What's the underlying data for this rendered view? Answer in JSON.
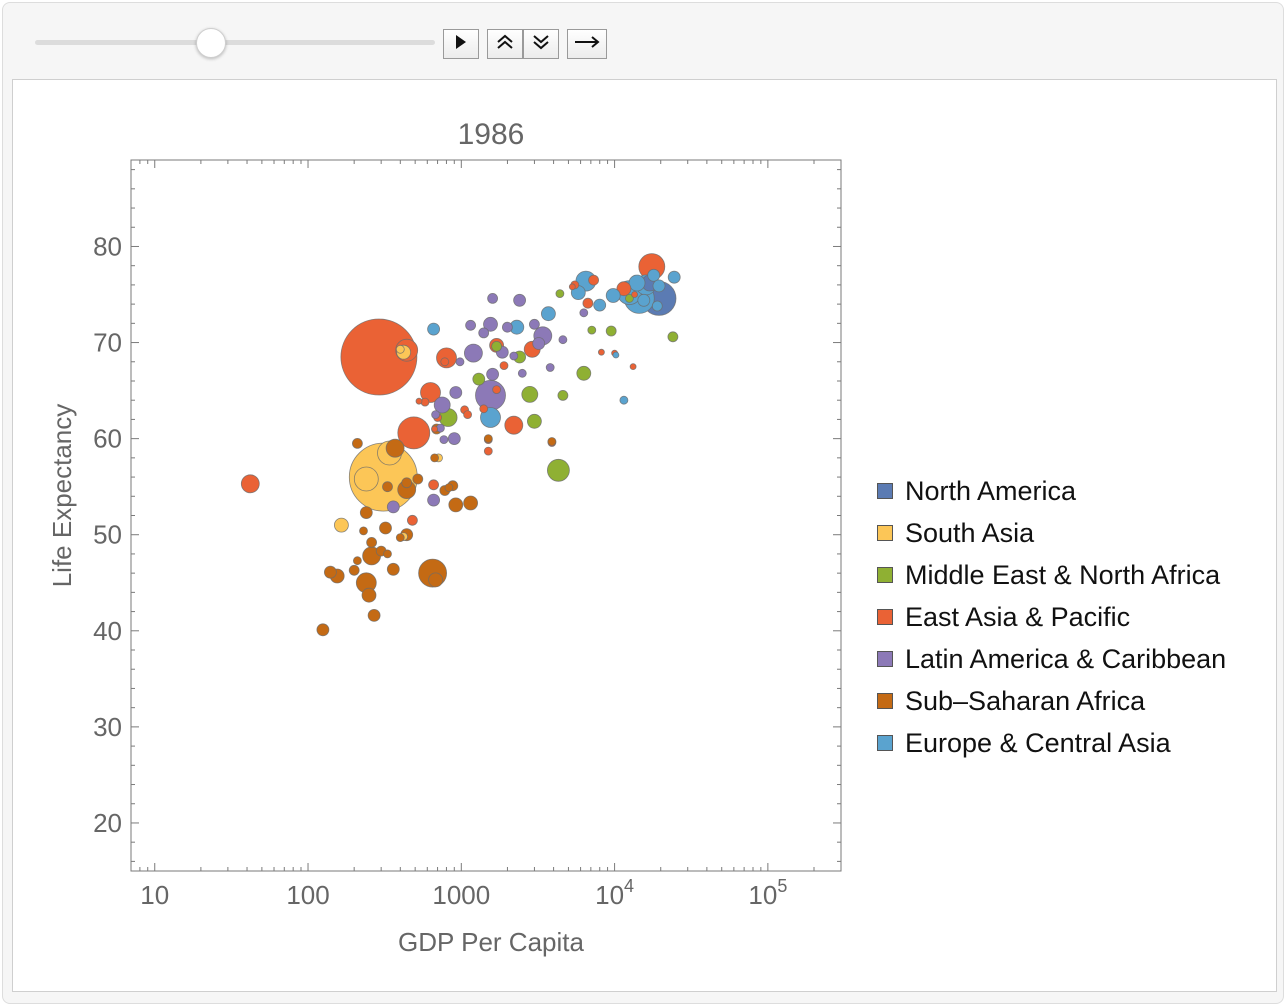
{
  "controls": {
    "slider_value": 0.44,
    "play_icon": "play-icon",
    "faster_icon": "double-chevron-up-icon",
    "slower_icon": "double-chevron-down-icon",
    "direction_icon": "right-arrow-icon"
  },
  "colors": {
    "North America": "#5b7bb3",
    "South Asia": "#fcc657",
    "Middle East & North Africa": "#8fb033",
    "East Asia & Pacific": "#ea6235",
    "Latin America & Caribbean": "#8c79b7",
    "Sub-Saharan Africa": "#c46a14",
    "Europe & Central Asia": "#5aa3cf"
  },
  "chart_data": {
    "type": "scatter",
    "title": "1986",
    "xlabel": "GDP Per Capita",
    "ylabel": "Life Expectancy",
    "x_scale": "log",
    "xlim": [
      7,
      300000
    ],
    "ylim": [
      15,
      89
    ],
    "x_ticks": [
      {
        "value": 10,
        "label": "10"
      },
      {
        "value": 100,
        "label": "100"
      },
      {
        "value": 1000,
        "label": "1000"
      },
      {
        "value": 10000,
        "base": "10",
        "exp": "4"
      },
      {
        "value": 100000,
        "base": "10",
        "exp": "5"
      }
    ],
    "y_ticks": [
      20,
      30,
      40,
      50,
      60,
      70,
      80
    ],
    "legend": {
      "position": "right",
      "entries": [
        "North America",
        "South Asia",
        "Middle East & North Africa",
        "East Asia & Pacific",
        "Latin America & Caribbean",
        "Sub–Saharan Africa",
        "Europe & Central Asia"
      ]
    },
    "series": [
      {
        "name": "North America",
        "points": [
          {
            "x": 19500,
            "y": 74.6,
            "size": 17
          },
          {
            "x": 17000,
            "y": 76.2,
            "size": 8
          }
        ]
      },
      {
        "name": "South Asia",
        "points": [
          {
            "x": 310,
            "y": 56.0,
            "size": 34
          },
          {
            "x": 340,
            "y": 58.5,
            "size": 12
          },
          {
            "x": 240,
            "y": 55.8,
            "size": 12
          },
          {
            "x": 420,
            "y": 69.0,
            "size": 7
          },
          {
            "x": 165,
            "y": 51.0,
            "size": 7
          },
          {
            "x": 710,
            "y": 58.0,
            "size": 4
          },
          {
            "x": 420,
            "y": 49.8,
            "size": 4
          },
          {
            "x": 400,
            "y": 69.3,
            "size": 4
          }
        ]
      },
      {
        "name": "Middle East & North Africa",
        "points": [
          {
            "x": 820,
            "y": 62.2,
            "size": 9
          },
          {
            "x": 1300,
            "y": 66.2,
            "size": 6
          },
          {
            "x": 2800,
            "y": 64.6,
            "size": 8
          },
          {
            "x": 4300,
            "y": 56.7,
            "size": 11
          },
          {
            "x": 3000,
            "y": 61.8,
            "size": 7
          },
          {
            "x": 2400,
            "y": 68.5,
            "size": 6
          },
          {
            "x": 6300,
            "y": 66.8,
            "size": 7
          },
          {
            "x": 4600,
            "y": 64.5,
            "size": 5
          },
          {
            "x": 7100,
            "y": 71.3,
            "size": 4
          },
          {
            "x": 9500,
            "y": 71.2,
            "size": 5
          },
          {
            "x": 4400,
            "y": 75.1,
            "size": 4
          },
          {
            "x": 12500,
            "y": 74.6,
            "size": 4
          },
          {
            "x": 24000,
            "y": 70.6,
            "size": 5
          },
          {
            "x": 1700,
            "y": 69.6,
            "size": 5
          }
        ]
      },
      {
        "name": "East Asia & Pacific",
        "points": [
          {
            "x": 290,
            "y": 68.5,
            "size": 38
          },
          {
            "x": 490,
            "y": 60.6,
            "size": 16
          },
          {
            "x": 440,
            "y": 69.2,
            "size": 11
          },
          {
            "x": 800,
            "y": 68.4,
            "size": 10
          },
          {
            "x": 42,
            "y": 55.3,
            "size": 9
          },
          {
            "x": 630,
            "y": 64.8,
            "size": 10
          },
          {
            "x": 17500,
            "y": 77.9,
            "size": 13
          },
          {
            "x": 2200,
            "y": 61.4,
            "size": 9
          },
          {
            "x": 2900,
            "y": 69.3,
            "size": 8
          },
          {
            "x": 1700,
            "y": 69.7,
            "size": 7
          },
          {
            "x": 11500,
            "y": 75.6,
            "size": 7
          },
          {
            "x": 7300,
            "y": 76.5,
            "size": 5
          },
          {
            "x": 6700,
            "y": 74.1,
            "size": 5
          },
          {
            "x": 660,
            "y": 55.2,
            "size": 5
          },
          {
            "x": 480,
            "y": 51.5,
            "size": 5
          },
          {
            "x": 580,
            "y": 63.8,
            "size": 4
          },
          {
            "x": 700,
            "y": 62.2,
            "size": 4
          },
          {
            "x": 780,
            "y": 68.0,
            "size": 4
          },
          {
            "x": 1400,
            "y": 63.1,
            "size": 4
          },
          {
            "x": 1500,
            "y": 58.7,
            "size": 4
          },
          {
            "x": 1500,
            "y": 59.9,
            "size": 4
          },
          {
            "x": 1700,
            "y": 65.1,
            "size": 4
          },
          {
            "x": 1900,
            "y": 67.6,
            "size": 4
          },
          {
            "x": 1050,
            "y": 63.0,
            "size": 4
          },
          {
            "x": 1100,
            "y": 62.5,
            "size": 4
          },
          {
            "x": 3900,
            "y": 59.6,
            "size": 4
          },
          {
            "x": 5500,
            "y": 76.0,
            "size": 4
          },
          {
            "x": 8200,
            "y": 69.0,
            "size": 3
          },
          {
            "x": 10000,
            "y": 68.9,
            "size": 3
          },
          {
            "x": 13200,
            "y": 67.5,
            "size": 3
          },
          {
            "x": 13500,
            "y": 75.0,
            "size": 3
          },
          {
            "x": 5300,
            "y": 75.8,
            "size": 3
          },
          {
            "x": 530,
            "y": 63.9,
            "size": 3
          },
          {
            "x": 670,
            "y": 61.0,
            "size": 3
          }
        ]
      },
      {
        "name": "Latin America & Caribbean",
        "points": [
          {
            "x": 1550,
            "y": 64.5,
            "size": 15
          },
          {
            "x": 1200,
            "y": 68.9,
            "size": 9
          },
          {
            "x": 3400,
            "y": 70.7,
            "size": 9
          },
          {
            "x": 750,
            "y": 63.5,
            "size": 8
          },
          {
            "x": 1550,
            "y": 71.9,
            "size": 7
          },
          {
            "x": 2400,
            "y": 74.4,
            "size": 6
          },
          {
            "x": 1850,
            "y": 69.0,
            "size": 6
          },
          {
            "x": 1600,
            "y": 66.7,
            "size": 6
          },
          {
            "x": 900,
            "y": 60.0,
            "size": 6
          },
          {
            "x": 920,
            "y": 64.8,
            "size": 6
          },
          {
            "x": 660,
            "y": 53.6,
            "size": 6
          },
          {
            "x": 360,
            "y": 52.9,
            "size": 6
          },
          {
            "x": 3200,
            "y": 69.9,
            "size": 6
          },
          {
            "x": 1150,
            "y": 71.8,
            "size": 5
          },
          {
            "x": 1600,
            "y": 74.6,
            "size": 5
          },
          {
            "x": 2000,
            "y": 71.6,
            "size": 5
          },
          {
            "x": 1400,
            "y": 71.0,
            "size": 5
          },
          {
            "x": 3000,
            "y": 71.9,
            "size": 5
          },
          {
            "x": 3800,
            "y": 67.4,
            "size": 4
          },
          {
            "x": 2500,
            "y": 66.8,
            "size": 4
          },
          {
            "x": 4600,
            "y": 70.3,
            "size": 4
          },
          {
            "x": 6300,
            "y": 73.1,
            "size": 4
          },
          {
            "x": 680,
            "y": 62.5,
            "size": 4
          },
          {
            "x": 730,
            "y": 61.1,
            "size": 4
          },
          {
            "x": 770,
            "y": 59.9,
            "size": 4
          },
          {
            "x": 980,
            "y": 68.0,
            "size": 4
          },
          {
            "x": 2200,
            "y": 68.6,
            "size": 4
          }
        ]
      },
      {
        "name": "Sub-Saharan Africa",
        "points": [
          {
            "x": 650,
            "y": 46.0,
            "size": 14
          },
          {
            "x": 240,
            "y": 45.0,
            "size": 10
          },
          {
            "x": 440,
            "y": 54.7,
            "size": 9
          },
          {
            "x": 370,
            "y": 59.0,
            "size": 9
          },
          {
            "x": 260,
            "y": 47.8,
            "size": 9
          },
          {
            "x": 1150,
            "y": 53.3,
            "size": 7
          },
          {
            "x": 920,
            "y": 53.1,
            "size": 7
          },
          {
            "x": 680,
            "y": 45.3,
            "size": 7
          },
          {
            "x": 250,
            "y": 43.7,
            "size": 7
          },
          {
            "x": 155,
            "y": 45.7,
            "size": 7
          },
          {
            "x": 270,
            "y": 41.6,
            "size": 6
          },
          {
            "x": 125,
            "y": 40.1,
            "size": 6
          },
          {
            "x": 140,
            "y": 46.1,
            "size": 6
          },
          {
            "x": 240,
            "y": 52.3,
            "size": 6
          },
          {
            "x": 320,
            "y": 50.7,
            "size": 6
          },
          {
            "x": 360,
            "y": 46.4,
            "size": 6
          },
          {
            "x": 440,
            "y": 50.0,
            "size": 6
          },
          {
            "x": 520,
            "y": 55.8,
            "size": 5
          },
          {
            "x": 210,
            "y": 59.5,
            "size": 5
          },
          {
            "x": 200,
            "y": 46.3,
            "size": 5
          },
          {
            "x": 260,
            "y": 49.2,
            "size": 5
          },
          {
            "x": 300,
            "y": 48.3,
            "size": 5
          },
          {
            "x": 330,
            "y": 55.0,
            "size": 5
          },
          {
            "x": 440,
            "y": 55.4,
            "size": 5
          },
          {
            "x": 880,
            "y": 55.1,
            "size": 5
          },
          {
            "x": 780,
            "y": 54.6,
            "size": 5
          },
          {
            "x": 690,
            "y": 61.0,
            "size": 5
          },
          {
            "x": 830,
            "y": 54.9,
            "size": 4
          },
          {
            "x": 230,
            "y": 50.4,
            "size": 4
          },
          {
            "x": 210,
            "y": 47.3,
            "size": 4
          },
          {
            "x": 400,
            "y": 49.7,
            "size": 4
          },
          {
            "x": 330,
            "y": 48.0,
            "size": 4
          },
          {
            "x": 670,
            "y": 58.0,
            "size": 4
          },
          {
            "x": 1500,
            "y": 60.0,
            "size": 4
          },
          {
            "x": 3900,
            "y": 59.7,
            "size": 4
          }
        ]
      },
      {
        "name": "Europe & Central Asia",
        "points": [
          {
            "x": 14500,
            "y": 74.6,
            "size": 15
          },
          {
            "x": 12500,
            "y": 75.2,
            "size": 12
          },
          {
            "x": 6500,
            "y": 76.4,
            "size": 10
          },
          {
            "x": 1550,
            "y": 62.2,
            "size": 10
          },
          {
            "x": 16000,
            "y": 76.0,
            "size": 10
          },
          {
            "x": 14000,
            "y": 76.2,
            "size": 8
          },
          {
            "x": 5800,
            "y": 75.2,
            "size": 7
          },
          {
            "x": 3700,
            "y": 73.0,
            "size": 7
          },
          {
            "x": 2300,
            "y": 71.6,
            "size": 7
          },
          {
            "x": 9800,
            "y": 74.9,
            "size": 7
          },
          {
            "x": 15500,
            "y": 74.4,
            "size": 6
          },
          {
            "x": 18000,
            "y": 77.0,
            "size": 6
          },
          {
            "x": 19500,
            "y": 75.9,
            "size": 6
          },
          {
            "x": 24500,
            "y": 76.8,
            "size": 6
          },
          {
            "x": 8000,
            "y": 73.9,
            "size": 6
          },
          {
            "x": 660,
            "y": 71.4,
            "size": 6
          },
          {
            "x": 19000,
            "y": 73.8,
            "size": 5
          },
          {
            "x": 11500,
            "y": 64.0,
            "size": 4
          },
          {
            "x": 10200,
            "y": 68.7,
            "size": 3
          }
        ]
      }
    ]
  }
}
